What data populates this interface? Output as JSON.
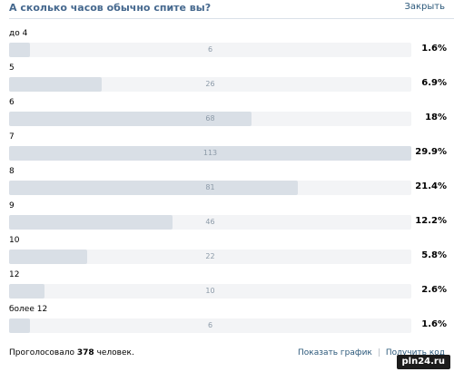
{
  "poll": {
    "title": "А сколько часов обычно спите вы?",
    "close_label": "Закрыть"
  },
  "rows": [
    {
      "label": "до 4",
      "count": "6",
      "pct": "1.6%",
      "fraction": 0.053
    },
    {
      "label": "5",
      "count": "26",
      "pct": "6.9%",
      "fraction": 0.23
    },
    {
      "label": "6",
      "count": "68",
      "pct": "18%",
      "fraction": 0.602
    },
    {
      "label": "7",
      "count": "113",
      "pct": "29.9%",
      "fraction": 1.0
    },
    {
      "label": "8",
      "count": "81",
      "pct": "21.4%",
      "fraction": 0.717
    },
    {
      "label": "9",
      "count": "46",
      "pct": "12.2%",
      "fraction": 0.407
    },
    {
      "label": "10",
      "count": "22",
      "pct": "5.8%",
      "fraction": 0.195
    },
    {
      "label": "12",
      "count": "10",
      "pct": "2.6%",
      "fraction": 0.088
    },
    {
      "label": "более 12",
      "count": "6",
      "pct": "1.6%",
      "fraction": 0.053
    }
  ],
  "footer": {
    "voted_prefix": "Проголосовало",
    "voted_count": "378",
    "voted_suffix": "человек.",
    "show_chart": "Показать график",
    "separator": "|",
    "get_code": "Получить код"
  },
  "watermark": "pln24.ru",
  "colors": {
    "title": "#45688e",
    "link": "#2b587a",
    "bar_fill": "#d9dfe6",
    "bar_track": "#f3f4f6"
  }
}
